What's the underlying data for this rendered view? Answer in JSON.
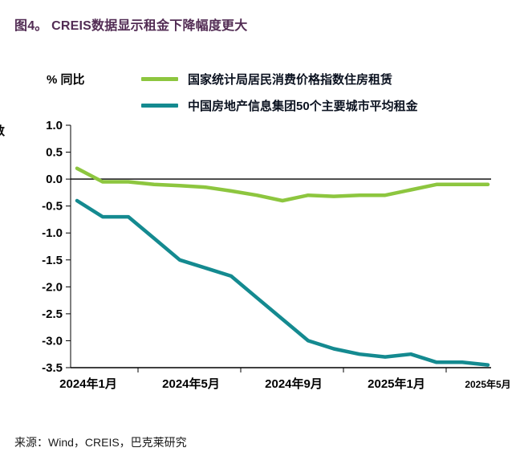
{
  "figure": {
    "title": "图4。 CREIS数据显示租金下降幅度更大",
    "y_axis_label": "% 同比",
    "clipped_edge_text": "数",
    "source": "来源：Wind，CREIS，巴克莱研究"
  },
  "colors": {
    "title": "#522c54",
    "cpi_line": "#8dc63f",
    "creis_line": "#148a90",
    "axis": "#000000"
  },
  "legend": [
    {
      "label": "国家统计局居民消费价格指数住房租赁",
      "color": "#8dc63f"
    },
    {
      "label": "中国房地产信息集团50个主要城市平均租金",
      "color": "#148a90"
    }
  ],
  "chart_data": {
    "type": "line",
    "x": [
      "2024年1月",
      "2024年2月",
      "2024年3月",
      "2024年4月",
      "2024年5月",
      "2024年6月",
      "2024年7月",
      "2024年8月",
      "2024年9月",
      "2024年10月",
      "2024年11月",
      "2024年12月",
      "2025年1月",
      "2025年2月",
      "2025年3月",
      "2025年4月",
      "2025年5月"
    ],
    "series": [
      {
        "name": "国家统计局居民消费价格指数住房租赁",
        "color": "#8dc63f",
        "values": [
          0.2,
          -0.05,
          -0.05,
          -0.1,
          -0.12,
          -0.15,
          -0.22,
          -0.3,
          -0.4,
          -0.3,
          -0.32,
          -0.3,
          -0.3,
          -0.2,
          -0.1,
          -0.1,
          -0.1
        ]
      },
      {
        "name": "中国房地产信息集团50个主要城市平均租金",
        "color": "#148a90",
        "values": [
          -0.4,
          -0.7,
          -0.7,
          -1.1,
          -1.5,
          -1.65,
          -1.8,
          -2.2,
          -2.6,
          -3.0,
          -3.15,
          -3.25,
          -3.3,
          -3.25,
          -3.4,
          -3.4,
          -3.45
        ]
      }
    ],
    "title": "图4。 CREIS数据显示租金下降幅度更大",
    "xlabel": "",
    "ylabel": "% 同比",
    "ylim": [
      -3.5,
      1.0
    ],
    "ytick_labels": [
      "1.0",
      "0.5",
      "0.0",
      "-0.5",
      "-1.0",
      "-1.5",
      "-2.0",
      "-2.5",
      "-3.0",
      "-3.5"
    ],
    "xtick_labels": [
      "2024年1月",
      "2024年5月",
      "2024年9月",
      "2025年1月",
      "2025年5月"
    ],
    "xtick_indices": [
      0,
      4,
      8,
      12,
      16
    ],
    "grid": false,
    "zero_line": true,
    "legend_position": "top"
  }
}
